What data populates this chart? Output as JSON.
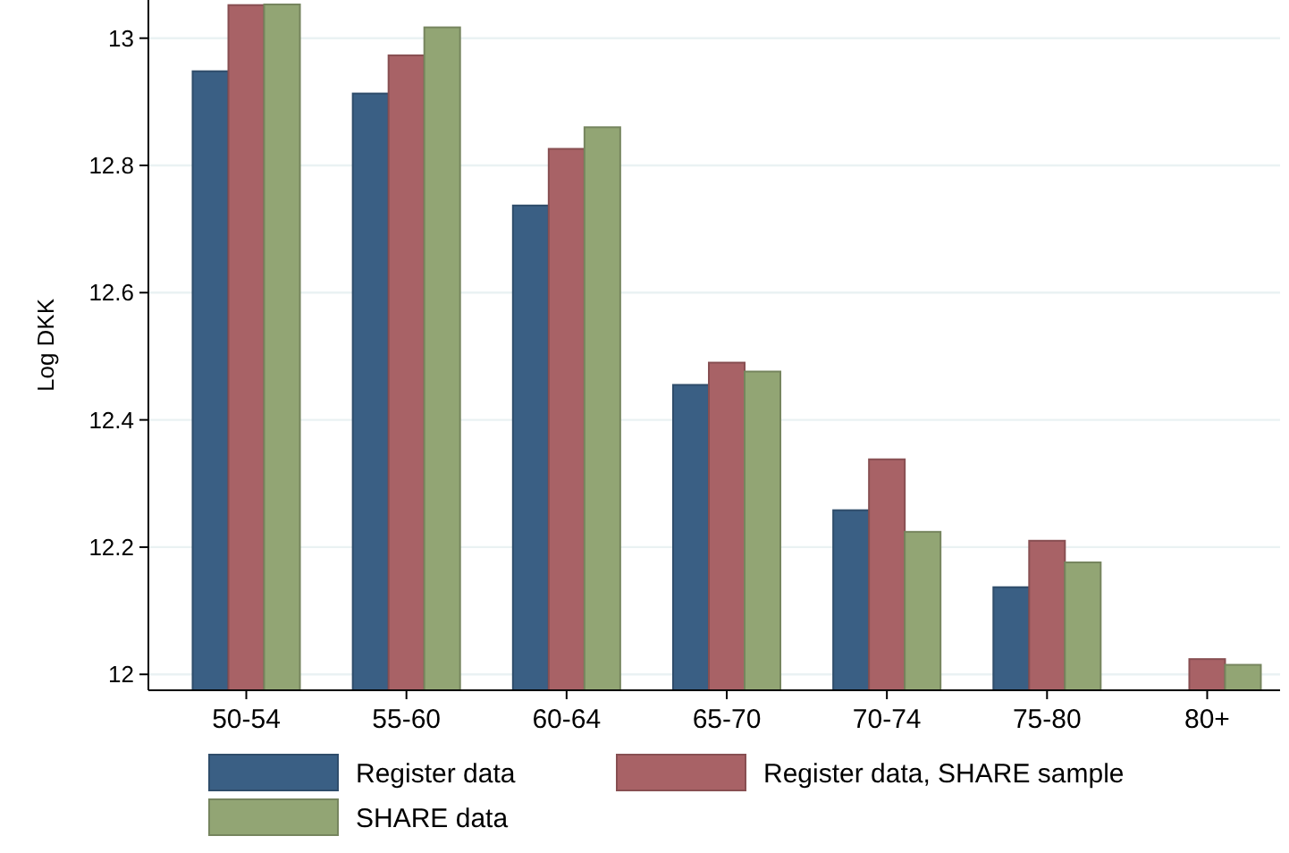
{
  "chart_data": {
    "type": "bar",
    "ylabel": "Log DKK",
    "categories": [
      "50-54",
      "55-60",
      "60-64",
      "65-70",
      "70-74",
      "75-80",
      "80+"
    ],
    "series": [
      {
        "name": "Register data",
        "color": "#3a5f84",
        "values": [
          12.948,
          12.913,
          12.737,
          12.455,
          12.258,
          12.137,
          null
        ]
      },
      {
        "name": "Register data, SHARE sample",
        "color": "#a86266",
        "values": [
          13.052,
          12.973,
          12.826,
          12.49,
          12.338,
          12.21,
          12.024
        ]
      },
      {
        "name": "SHARE data",
        "color": "#92a574",
        "values": [
          13.053,
          13.017,
          12.86,
          12.476,
          12.224,
          12.176,
          12.015
        ]
      }
    ],
    "ylim": [
      11.975,
      13.06
    ],
    "yticks": [
      12,
      12.2,
      12.4,
      12.6,
      12.8,
      13
    ],
    "grid": "y",
    "legend": "bottom"
  }
}
